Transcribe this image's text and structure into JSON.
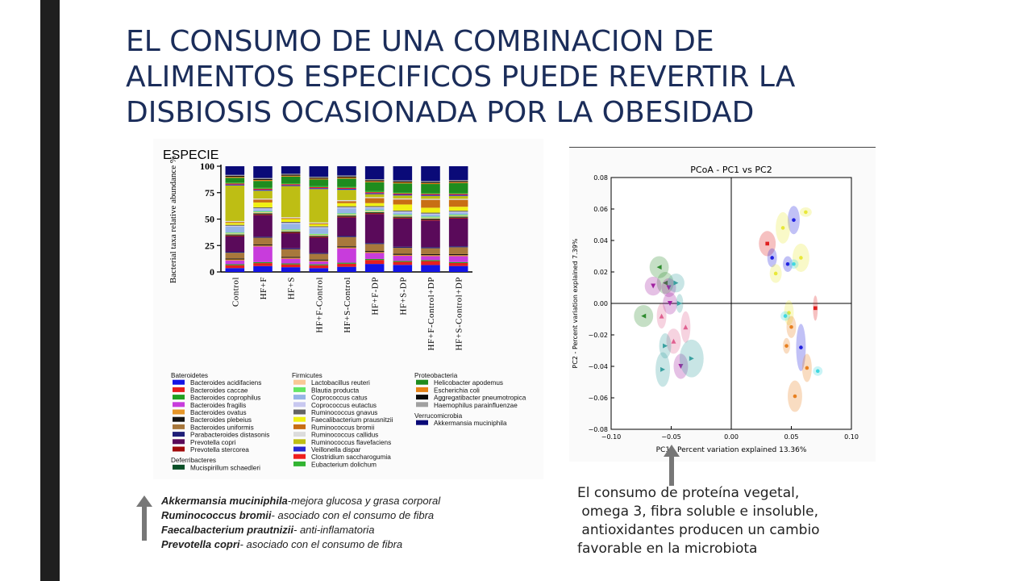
{
  "slide": {
    "title_lines": [
      "EL CONSUMO DE UNA COMBINACION DE",
      "ALIMENTOS ESPECIFICOS PUEDE REVERTIR LA",
      "DISBIOSIS OCASIONADA POR LA OBESIDAD"
    ],
    "notes": [
      {
        "name": "Akkermansia muciniphila",
        "desc": "-mejora glucosa y grasa corporal"
      },
      {
        "name": "Ruminococcus bromii",
        "desc": "- asociado con el consumo de fibra"
      },
      {
        "name": "Faecalbacterium prautnizii",
        "desc": "- anti-inflamatoria"
      },
      {
        "name": "Prevotella copri",
        "desc": "- asociado con el consumo de fibra"
      }
    ],
    "conclusion_lines": [
      "El consumo de proteína vegetal,",
      " omega 3, fibra soluble e insoluble,",
      " antioxidantes producen un cambio",
      "favorable en la microbiota"
    ],
    "colors": {
      "title": "#1b2d5a",
      "left_bar": "#1f1f1f",
      "arrow": "#777777"
    }
  },
  "chart_data": [
    {
      "type": "bar",
      "stacked": true,
      "title": "ESPECIE",
      "ylabel": "Bacterial taxa relative abundance %",
      "ylim": [
        0,
        100
      ],
      "yticks": [
        "0",
        "25",
        "50",
        "75",
        "100"
      ],
      "categories": [
        "Control",
        "HF+F",
        "HF+S",
        "HF+F-Control",
        "HF+S-Control",
        "HF+F-DP",
        "HF+S-DP",
        "HF+F-Control+DP",
        "HF+S-Control+DP"
      ],
      "series": [
        {
          "name": "Bacteroides acidifaciens",
          "color": "#1414e6",
          "values": [
            4,
            6,
            5,
            4,
            5,
            8,
            7,
            7,
            6
          ]
        },
        {
          "name": "Bacteroides caccae",
          "color": "#e61e1e",
          "values": [
            3,
            3,
            3,
            3,
            3,
            4,
            3,
            4,
            3
          ]
        },
        {
          "name": "Bacteroides coprophilus",
          "color": "#22a022",
          "values": [
            1,
            1,
            1,
            1,
            1,
            1,
            1,
            1,
            1
          ]
        },
        {
          "name": "Bacteroides fragilis",
          "color": "#c83cdc",
          "values": [
            4,
            16,
            5,
            3,
            14,
            6,
            5,
            4,
            6
          ]
        },
        {
          "name": "Bacteroides ovatus",
          "color": "#e69628",
          "values": [
            1,
            1,
            1,
            1,
            1,
            1,
            1,
            1,
            1
          ]
        },
        {
          "name": "Bacteroides plebeius",
          "color": "#141414",
          "values": [
            1,
            1,
            1,
            1,
            1,
            1,
            1,
            1,
            1
          ]
        },
        {
          "name": "Bacteroides uniformis",
          "color": "#a8783c",
          "values": [
            6,
            7,
            8,
            6,
            9,
            7,
            6,
            6,
            7
          ]
        },
        {
          "name": "Parabacteroides distasonis",
          "color": "#1e1e78",
          "values": [
            1,
            1,
            1,
            1,
            1,
            1,
            1,
            1,
            1
          ]
        },
        {
          "name": "Prevotella copri",
          "color": "#5a0a5a",
          "values": [
            16,
            22,
            16,
            16,
            18,
            29,
            28,
            27,
            28
          ]
        },
        {
          "name": "Prevotella stercorea",
          "color": "#a00a0a",
          "values": [
            1,
            1,
            1,
            1,
            1,
            1,
            1,
            1,
            1
          ]
        },
        {
          "name": "Mucispirillum schaedleri",
          "color": "#0a5028",
          "values": [
            1,
            1,
            1,
            1,
            1,
            1,
            1,
            1,
            1
          ]
        },
        {
          "name": "Lactobacillus reuteri",
          "color": "#fac896",
          "values": [
            1,
            1,
            1,
            1,
            1,
            1,
            1,
            1,
            1
          ]
        },
        {
          "name": "Blautia producta",
          "color": "#64e664",
          "values": [
            1,
            1,
            1,
            1,
            1,
            1,
            1,
            1,
            1
          ]
        },
        {
          "name": "Coprococcus catus",
          "color": "#96b4e6",
          "values": [
            6,
            2,
            6,
            6,
            5,
            2,
            2,
            2,
            2
          ]
        },
        {
          "name": "Coprococcus eutactus",
          "color": "#c8c8f0",
          "values": [
            1,
            1,
            1,
            1,
            1,
            1,
            1,
            1,
            1
          ]
        },
        {
          "name": "Ruminococcus gnavus",
          "color": "#646464",
          "values": [
            1,
            1,
            1,
            1,
            1,
            1,
            1,
            1,
            1
          ]
        },
        {
          "name": "Faecalibacterium prausnitzii",
          "color": "#f0f014",
          "values": [
            2,
            5,
            3,
            2,
            3,
            3,
            6,
            5,
            4
          ]
        },
        {
          "name": "Ruminococcus bromii",
          "color": "#c86e14",
          "values": [
            1,
            3,
            1,
            1,
            2,
            5,
            5,
            8,
            7
          ]
        },
        {
          "name": "Ruminococcus callidus",
          "color": "#dcdcdc",
          "values": [
            1,
            1,
            1,
            1,
            1,
            1,
            1,
            1,
            1
          ]
        },
        {
          "name": "Ruminococcus flavefaciens",
          "color": "#bebe14",
          "values": [
            37,
            8,
            33,
            35,
            10,
            3,
            3,
            3,
            3
          ]
        },
        {
          "name": "Veillonella dispar",
          "color": "#2828d2",
          "values": [
            1,
            1,
            1,
            1,
            1,
            1,
            1,
            1,
            1
          ]
        },
        {
          "name": "Clostridium saccharogumia",
          "color": "#f01e1e",
          "values": [
            1,
            1,
            1,
            1,
            1,
            1,
            1,
            1,
            1
          ]
        },
        {
          "name": "Eubacterium dolichum",
          "color": "#32b432",
          "values": [
            1,
            1,
            1,
            1,
            1,
            1,
            1,
            1,
            1
          ]
        },
        {
          "name": "Helicobacter apodemus",
          "color": "#1e8c1e",
          "values": [
            5,
            7,
            7,
            7,
            8,
            9,
            9,
            9,
            10
          ]
        },
        {
          "name": "Escherichia coli",
          "color": "#e68214",
          "values": [
            1,
            1,
            1,
            1,
            1,
            1,
            1,
            1,
            1
          ]
        },
        {
          "name": "Aggregatibacter pneumotropica",
          "color": "#0a0a0a",
          "values": [
            1,
            1,
            1,
            1,
            1,
            1,
            1,
            1,
            1
          ]
        },
        {
          "name": "Haemophilus parainfluenzae",
          "color": "#a0a0a0",
          "values": [
            1,
            1,
            1,
            1,
            1,
            1,
            1,
            1,
            1
          ]
        },
        {
          "name": "Akkermansia muciniphila",
          "color": "#0a0a78",
          "values": [
            9,
            12,
            8,
            11,
            9,
            13,
            14,
            15,
            14
          ]
        }
      ],
      "legend_groups": [
        {
          "title": "Bateroidetes",
          "items": [
            "Bacteroides acidifaciens",
            "Bacteroides caccae",
            "Bacteroides coprophilus",
            "Bacteroides fragilis",
            "Bacteroides ovatus",
            "Bacteroides plebeius",
            "Bacteroides uniformis",
            "Parabacteroides distasonis",
            "Prevotella copri",
            "Prevotella stercorea"
          ]
        },
        {
          "title": "Deferribacteres",
          "items": [
            "Mucispirillum schaedleri"
          ]
        },
        {
          "title": "Firmicutes",
          "items": [
            "Lactobacillus reuteri",
            "Blautia producta",
            "Coprococcus catus",
            "Coprococcus eutactus",
            "Ruminococcus gnavus",
            "Faecalibacterium prausnitzii",
            "Ruminococcus bromii",
            "Ruminococcus callidus",
            "Ruminococcus flavefaciens",
            "Veillonella dispar",
            "Clostridium saccharogumia",
            "Eubacterium dolichum"
          ]
        },
        {
          "title": "Proteobacteria",
          "items": [
            "Helicobacter apodemus",
            "Escherichia coli",
            "Aggregatibacter pneumotropica",
            "Haemophilus parainfluenzae"
          ]
        },
        {
          "title": "Verrucomicrobia",
          "items": [
            "Akkermansia muciniphila"
          ]
        }
      ]
    },
    {
      "type": "scatter",
      "title": "PCoA - PC1 vs PC2",
      "xlabel": "PC1 - Percent variation explained 13.36%",
      "ylabel": "PC2 - Percent variation explained 7.39%",
      "xlim": [
        -0.1,
        0.1
      ],
      "ylim": [
        -0.08,
        0.08
      ],
      "xticks": [
        "−0.10",
        "−0.05",
        "0.00",
        "0.05",
        "0.10"
      ],
      "yticks": [
        "−0.08",
        "−0.06",
        "−0.04",
        "−0.02",
        "0.00",
        "0.02",
        "0.04",
        "0.06",
        "0.08"
      ],
      "grid": false,
      "points": [
        {
          "x": -0.06,
          "y": 0.023,
          "color": "#2e8b2e",
          "marker": "tri-left",
          "rx": 0.008,
          "ry": 0.007
        },
        {
          "x": -0.055,
          "y": 0.013,
          "color": "#2e8b2e",
          "marker": "tri-left",
          "rx": 0.007,
          "ry": 0.007
        },
        {
          "x": -0.073,
          "y": -0.008,
          "color": "#2e8b2e",
          "marker": "tri-left",
          "rx": 0.008,
          "ry": 0.007
        },
        {
          "x": -0.065,
          "y": 0.011,
          "color": "#a020a0",
          "marker": "tri-down",
          "rx": 0.007,
          "ry": 0.006
        },
        {
          "x": -0.052,
          "y": 0.01,
          "color": "#a020a0",
          "marker": "tri-down",
          "rx": 0.006,
          "ry": 0.006
        },
        {
          "x": -0.051,
          "y": 0.0,
          "color": "#a020a0",
          "marker": "tri-down",
          "rx": 0.006,
          "ry": 0.007
        },
        {
          "x": -0.042,
          "y": -0.04,
          "color": "#a020a0",
          "marker": "tri-down",
          "rx": 0.006,
          "ry": 0.008
        },
        {
          "x": -0.058,
          "y": -0.008,
          "color": "#e06090",
          "marker": "tri-up",
          "rx": 0.004,
          "ry": 0.008
        },
        {
          "x": -0.038,
          "y": -0.015,
          "color": "#e06090",
          "marker": "tri-up",
          "rx": 0.004,
          "ry": 0.01
        },
        {
          "x": -0.048,
          "y": -0.024,
          "color": "#e06090",
          "marker": "tri-up",
          "rx": 0.006,
          "ry": 0.008
        },
        {
          "x": -0.046,
          "y": 0.013,
          "color": "#3aa0a0",
          "marker": "tri-right",
          "rx": 0.007,
          "ry": 0.006
        },
        {
          "x": -0.043,
          "y": 0.0,
          "color": "#3aa0a0",
          "marker": "tri-right",
          "rx": 0.003,
          "ry": 0.006
        },
        {
          "x": -0.055,
          "y": -0.027,
          "color": "#3aa0a0",
          "marker": "tri-right",
          "rx": 0.005,
          "ry": 0.008
        },
        {
          "x": -0.057,
          "y": -0.042,
          "color": "#3aa0a0",
          "marker": "tri-right",
          "rx": 0.006,
          "ry": 0.011
        },
        {
          "x": -0.033,
          "y": -0.035,
          "color": "#3aa0a0",
          "marker": "tri-right",
          "rx": 0.01,
          "ry": 0.012
        },
        {
          "x": 0.03,
          "y": 0.038,
          "color": "#e02020",
          "marker": "square",
          "rx": 0.007,
          "ry": 0.008
        },
        {
          "x": 0.07,
          "y": -0.003,
          "color": "#e02020",
          "marker": "square",
          "rx": 0.002,
          "ry": 0.008
        },
        {
          "x": 0.052,
          "y": 0.053,
          "color": "#2020e0",
          "marker": "circle",
          "rx": 0.005,
          "ry": 0.009
        },
        {
          "x": 0.034,
          "y": 0.029,
          "color": "#2020e0",
          "marker": "circle",
          "rx": 0.004,
          "ry": 0.006
        },
        {
          "x": 0.047,
          "y": 0.025,
          "color": "#2020e0",
          "marker": "circle",
          "rx": 0.004,
          "ry": 0.005
        },
        {
          "x": 0.058,
          "y": -0.028,
          "color": "#2020e0",
          "marker": "circle",
          "rx": 0.004,
          "ry": 0.015
        },
        {
          "x": 0.043,
          "y": 0.048,
          "color": "#e8e838",
          "marker": "circle",
          "rx": 0.006,
          "ry": 0.01
        },
        {
          "x": 0.062,
          "y": 0.058,
          "color": "#e8e838",
          "marker": "circle",
          "rx": 0.005,
          "ry": 0.003
        },
        {
          "x": 0.058,
          "y": 0.029,
          "color": "#e8e838",
          "marker": "circle",
          "rx": 0.007,
          "ry": 0.009
        },
        {
          "x": 0.037,
          "y": 0.019,
          "color": "#e8e838",
          "marker": "circle",
          "rx": 0.005,
          "ry": 0.006
        },
        {
          "x": 0.048,
          "y": -0.006,
          "color": "#e8e838",
          "marker": "circle",
          "rx": 0.004,
          "ry": 0.008
        },
        {
          "x": 0.052,
          "y": 0.025,
          "color": "#40d8e0",
          "marker": "circle",
          "rx": 0.004,
          "ry": 0.003
        },
        {
          "x": 0.045,
          "y": -0.008,
          "color": "#40d8e0",
          "marker": "circle",
          "rx": 0.004,
          "ry": 0.003
        },
        {
          "x": 0.072,
          "y": -0.043,
          "color": "#40d8e0",
          "marker": "circle",
          "rx": 0.004,
          "ry": 0.003
        },
        {
          "x": 0.05,
          "y": -0.015,
          "color": "#e88020",
          "marker": "circle",
          "rx": 0.004,
          "ry": 0.007
        },
        {
          "x": 0.046,
          "y": -0.027,
          "color": "#e88020",
          "marker": "circle",
          "rx": 0.003,
          "ry": 0.005
        },
        {
          "x": 0.063,
          "y": -0.041,
          "color": "#e88020",
          "marker": "circle",
          "rx": 0.004,
          "ry": 0.009
        },
        {
          "x": 0.053,
          "y": -0.059,
          "color": "#e88020",
          "marker": "circle",
          "rx": 0.006,
          "ry": 0.01
        }
      ]
    }
  ]
}
